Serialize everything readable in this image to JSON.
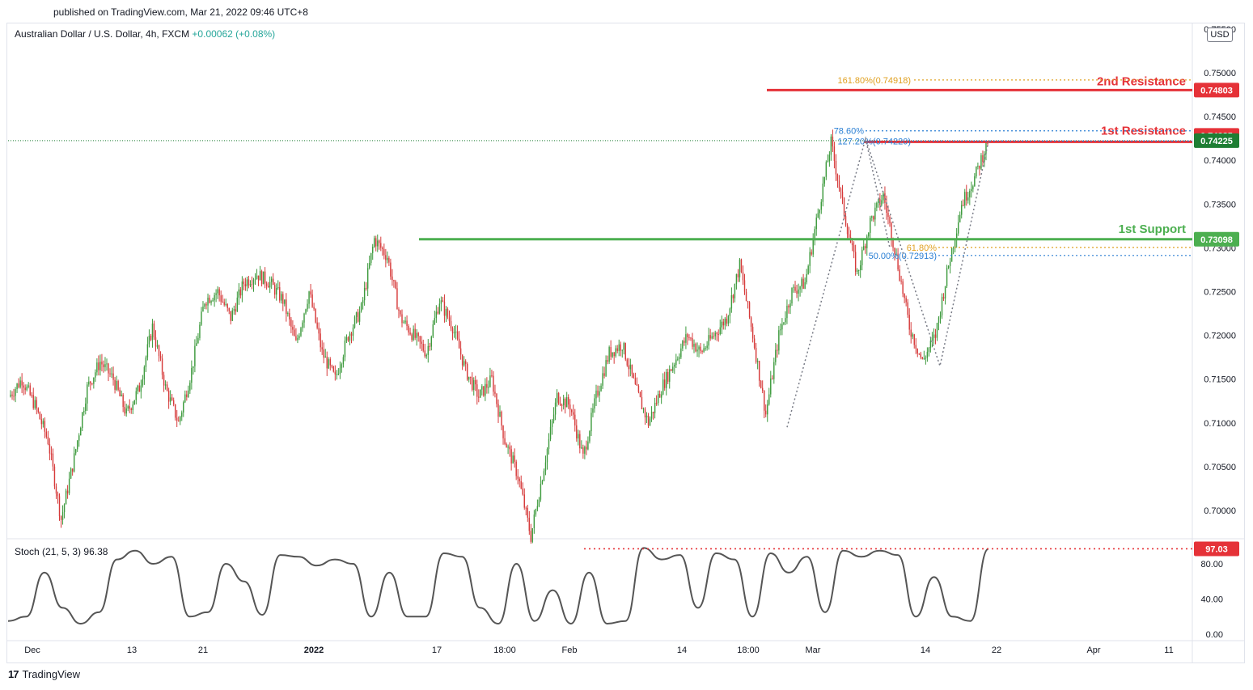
{
  "header": {
    "published": "published on TradingView.com, Mar 21, 2022 09:46 UTC+8",
    "symbol": "Australian Dollar / U.S. Dollar, 4h, FXCM",
    "change": "+0.00062 (+0.08%)",
    "currency": "USD"
  },
  "footer": {
    "logo": "17",
    "brand": "TradingView"
  },
  "colors": {
    "up": "#26a69a",
    "up_candle": "#3d9a3d",
    "down_candle": "#d63a3a",
    "resistance": "#e53238",
    "support": "#4caf50",
    "current_price": "#1e7e34",
    "fib_blue": "#2a7fd4",
    "fib_orange": "#e0a020",
    "pattern": "#787b86",
    "stoch": "#555555"
  },
  "levels": {
    "resistance_2": {
      "label": "2nd Resistance",
      "value": "0.74803"
    },
    "resistance_1": {
      "label": "1st Resistance",
      "value": "0.74285"
    },
    "current": {
      "value": "0.74225"
    },
    "support_1": {
      "label": "1st Support",
      "value": "0.73098"
    }
  },
  "fib_labels": {
    "ext_161": "161.80%(0.74918)",
    "ret_786": "78.60%",
    "ext_127": "127.20%(0.74220)",
    "ret_618": "61.80%",
    "ret_50": "50.00%(0.72913)"
  },
  "stoch": {
    "legend": "Stoch (21, 5, 3)",
    "value": "96.38",
    "tag": "97.03"
  },
  "chart_data": [
    {
      "type": "candlestick",
      "title": "Australian Dollar / U.S. Dollar, 4h, FXCM",
      "y_axis_ticks": [
        "0.75500",
        "0.75000",
        "0.74500",
        "0.74000",
        "0.73500",
        "0.73000",
        "0.72500",
        "0.72000",
        "0.71500",
        "0.71000",
        "0.70500",
        "0.70000"
      ],
      "x_axis_ticks": [
        "Dec",
        "13",
        "21",
        "2022",
        "17",
        "18:00",
        "Feb",
        "14",
        "18:00",
        "Mar",
        "14",
        "22",
        "Apr",
        "11"
      ],
      "ylim": [
        0.697,
        0.7555
      ],
      "path_points": [
        {
          "x": "Dec",
          "y": 0.713
        },
        {
          "x": "",
          "y": 0.715
        },
        {
          "x": "",
          "y": 0.712
        },
        {
          "x": "",
          "y": 0.708
        },
        {
          "x": "",
          "y": 0.699
        },
        {
          "x": "",
          "y": 0.706
        },
        {
          "x": "",
          "y": 0.714
        },
        {
          "x": "13",
          "y": 0.717
        },
        {
          "x": "",
          "y": 0.715
        },
        {
          "x": "",
          "y": 0.711
        },
        {
          "x": "",
          "y": 0.714
        },
        {
          "x": "",
          "y": 0.721
        },
        {
          "x": "",
          "y": 0.714
        },
        {
          "x": "21",
          "y": 0.71
        },
        {
          "x": "",
          "y": 0.716
        },
        {
          "x": "",
          "y": 0.724
        },
        {
          "x": "",
          "y": 0.725
        },
        {
          "x": "",
          "y": 0.722
        },
        {
          "x": "",
          "y": 0.726
        },
        {
          "x": "",
          "y": 0.727
        },
        {
          "x": "",
          "y": 0.726
        },
        {
          "x": "2022",
          "y": 0.724
        },
        {
          "x": "",
          "y": 0.719
        },
        {
          "x": "",
          "y": 0.725
        },
        {
          "x": "",
          "y": 0.718
        },
        {
          "x": "",
          "y": 0.715
        },
        {
          "x": "",
          "y": 0.72
        },
        {
          "x": "",
          "y": 0.723
        },
        {
          "x": "",
          "y": 0.731
        },
        {
          "x": "17",
          "y": 0.729
        },
        {
          "x": "",
          "y": 0.722
        },
        {
          "x": "",
          "y": 0.72
        },
        {
          "x": "",
          "y": 0.718
        },
        {
          "x": "",
          "y": 0.724
        },
        {
          "x": "",
          "y": 0.721
        },
        {
          "x": "18:00",
          "y": 0.716
        },
        {
          "x": "",
          "y": 0.713
        },
        {
          "x": "",
          "y": 0.715
        },
        {
          "x": "",
          "y": 0.708
        },
        {
          "x": "",
          "y": 0.704
        },
        {
          "x": "",
          "y": 0.697
        },
        {
          "x": "Feb",
          "y": 0.705
        },
        {
          "x": "",
          "y": 0.713
        },
        {
          "x": "",
          "y": 0.712
        },
        {
          "x": "",
          "y": 0.706
        },
        {
          "x": "",
          "y": 0.713
        },
        {
          "x": "",
          "y": 0.718
        },
        {
          "x": "",
          "y": 0.719
        },
        {
          "x": "14",
          "y": 0.714
        },
        {
          "x": "",
          "y": 0.71
        },
        {
          "x": "",
          "y": 0.714
        },
        {
          "x": "",
          "y": 0.717
        },
        {
          "x": "",
          "y": 0.72
        },
        {
          "x": "",
          "y": 0.718
        },
        {
          "x": "18:00",
          "y": 0.72
        },
        {
          "x": "",
          "y": 0.722
        },
        {
          "x": "",
          "y": 0.728
        },
        {
          "x": "",
          "y": 0.72
        },
        {
          "x": "",
          "y": 0.711
        },
        {
          "x": "",
          "y": 0.72
        },
        {
          "x": "Mar",
          "y": 0.725
        },
        {
          "x": "",
          "y": 0.726
        },
        {
          "x": "",
          "y": 0.734
        },
        {
          "x": "",
          "y": 0.742
        },
        {
          "x": "",
          "y": 0.734
        },
        {
          "x": "",
          "y": 0.727
        },
        {
          "x": "",
          "y": 0.733
        },
        {
          "x": "",
          "y": 0.736
        },
        {
          "x": "14",
          "y": 0.729
        },
        {
          "x": "",
          "y": 0.721
        },
        {
          "x": "",
          "y": 0.717
        },
        {
          "x": "",
          "y": 0.72
        },
        {
          "x": "",
          "y": 0.728
        },
        {
          "x": "",
          "y": 0.735
        },
        {
          "x": "",
          "y": 0.738
        },
        {
          "x": "",
          "y": 0.7422
        }
      ]
    },
    {
      "type": "line",
      "title": "Stoch (21, 5, 3)",
      "y_axis_ticks": [
        "80.00",
        "40.00",
        "0.00"
      ],
      "ylim": [
        0,
        100
      ],
      "values": [
        15,
        20,
        70,
        30,
        12,
        25,
        85,
        95,
        80,
        88,
        20,
        25,
        80,
        60,
        22,
        90,
        88,
        78,
        85,
        80,
        20,
        70,
        20,
        20,
        92,
        88,
        30,
        12,
        80,
        15,
        50,
        12,
        70,
        12,
        15,
        98,
        85,
        90,
        30,
        92,
        85,
        20,
        92,
        70,
        88,
        25,
        95,
        88,
        95,
        90,
        20,
        65,
        20,
        15,
        97
      ]
    }
  ]
}
